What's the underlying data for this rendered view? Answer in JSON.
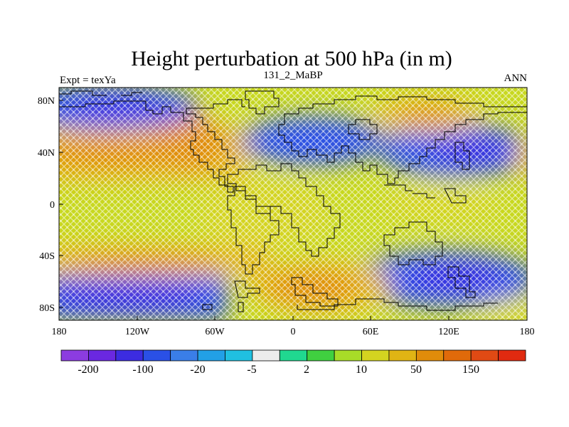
{
  "title": "Height perturbation at 500 hPa (in m)",
  "left_label": "Expt = texYa",
  "center_label": "131_2_MaBP",
  "right_label": "ANN",
  "chart_data": {
    "type": "heatmap",
    "title": "Height perturbation at 500 hPa (in m)",
    "subtitle": "131_2_MaBP",
    "x_ticks": [
      "180",
      "120W",
      "60W",
      "0",
      "60E",
      "120E",
      "180"
    ],
    "y_ticks": [
      "80N",
      "40N",
      "0",
      "40S",
      "80S"
    ],
    "xlim": [
      -180,
      180
    ],
    "ylim": [
      -90,
      90
    ],
    "colorbar": {
      "colors": [
        "#8c3ce0",
        "#6a28e0",
        "#3c2ce0",
        "#2a50e6",
        "#3a7ee8",
        "#22a0e6",
        "#20c0e0",
        "#ececec",
        "#20d890",
        "#40d040",
        "#a8dc28",
        "#d4d420",
        "#e0b414",
        "#e08c0a",
        "#e06a0a",
        "#e04a14",
        "#e02a10"
      ],
      "labels": [
        "-200",
        "-100",
        "-20",
        "-5",
        "2",
        "10",
        "50",
        "150"
      ]
    },
    "grid": false
  }
}
